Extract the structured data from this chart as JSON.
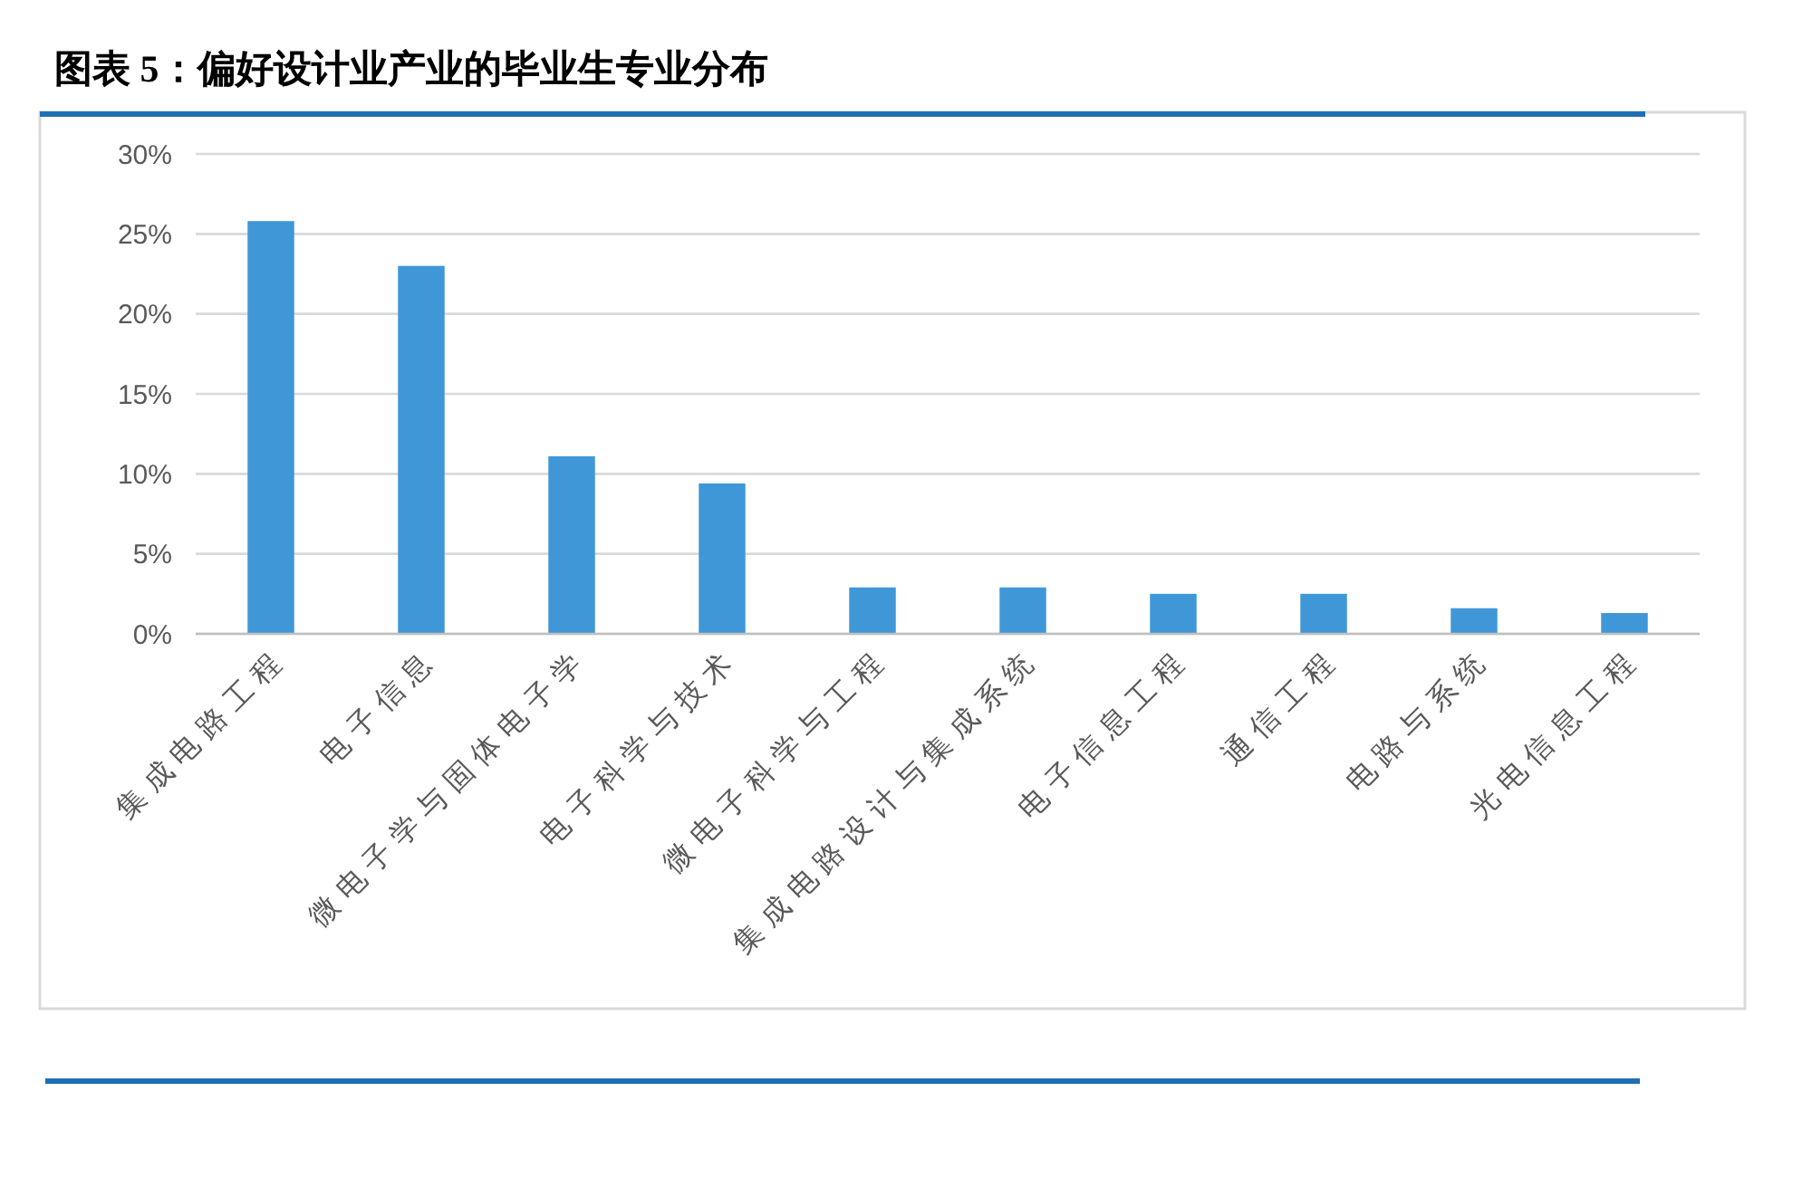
{
  "chart_data": {
    "type": "bar",
    "title": "图表 5：偏好设计业产业的毕业生专业分布",
    "categories": [
      "集成电路工程",
      "电子信息",
      "微电子学与固体电子学",
      "电子科学与技术",
      "微电子科学与工程",
      "集成电路设计与集成系统",
      "电子信息工程",
      "通信工程",
      "电路与系统",
      "光电信息工程"
    ],
    "values": [
      25.8,
      23.0,
      11.1,
      9.4,
      2.9,
      2.9,
      2.5,
      2.5,
      1.6,
      1.3
    ],
    "color": "#3f97d8",
    "ylim": [
      0,
      30
    ],
    "yticks": [
      {
        "value": 0,
        "label": "0%"
      },
      {
        "value": 5,
        "label": "5%"
      },
      {
        "value": 10,
        "label": "10%"
      },
      {
        "value": 15,
        "label": "15%"
      },
      {
        "value": 20,
        "label": "20%"
      },
      {
        "value": 25,
        "label": "25%"
      },
      {
        "value": 30,
        "label": "30%"
      }
    ],
    "grid": "y"
  }
}
